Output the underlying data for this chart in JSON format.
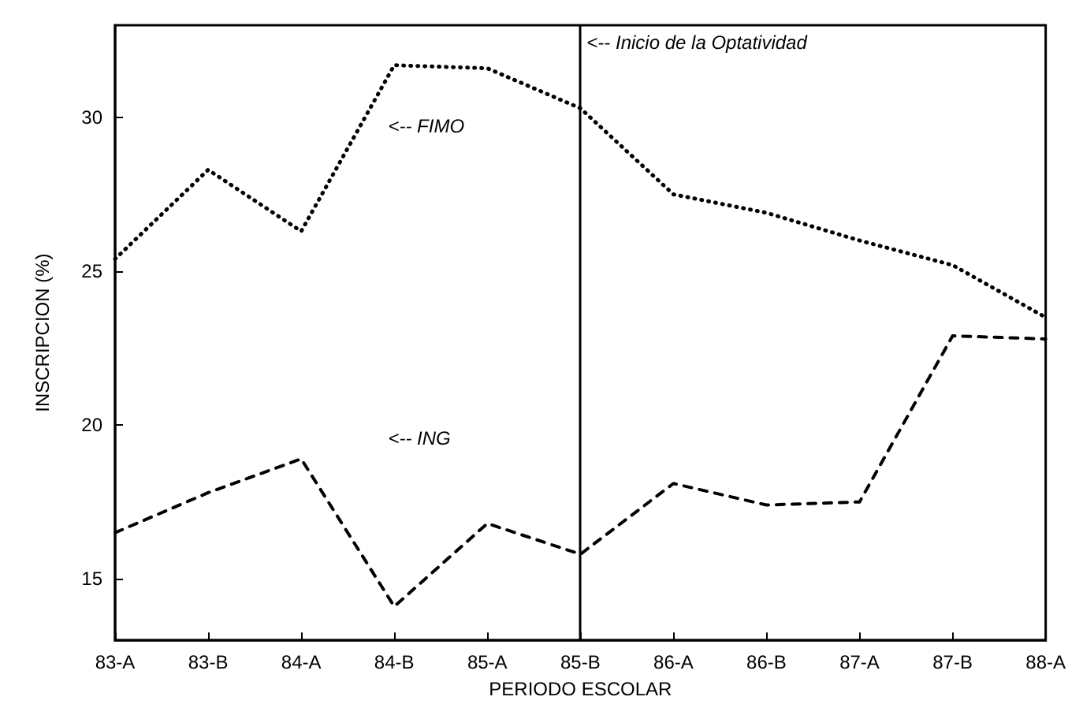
{
  "chart_data": {
    "type": "line",
    "xlabel": "PERIODO ESCOLAR",
    "ylabel": "INSCRIPCION (%)",
    "categories": [
      "83-A",
      "83-B",
      "84-A",
      "84-B",
      "85-A",
      "85-B",
      "86-A",
      "86-B",
      "87-A",
      "87-B",
      "88-A"
    ],
    "series": [
      {
        "color": "#000000",
        "line_style": "dotted",
        "values": [
          25.4,
          28.3,
          26.3,
          31.7,
          31.6,
          30.3,
          27.5,
          26.9,
          26.0,
          25.2,
          23.5
        ]
      },
      {
        "color": "#000000",
        "line_style": "dashed",
        "values": [
          16.5,
          17.8,
          18.9,
          14.1,
          16.8,
          15.8,
          18.1,
          17.4,
          17.5,
          22.9,
          22.8
        ]
      }
    ],
    "ylim": [
      13,
      33
    ],
    "yticks": [
      15,
      20,
      25,
      30
    ],
    "ref_lines": [
      {
        "axis": "x",
        "value": "85-B",
        "label": "<-- Inicio de la Optatividad",
        "color": "#000000",
        "line_style": "solid"
      }
    ],
    "annotations": [
      "<-- FIMO",
      "<-- ING"
    ],
    "marker": "none",
    "grid": false
  }
}
